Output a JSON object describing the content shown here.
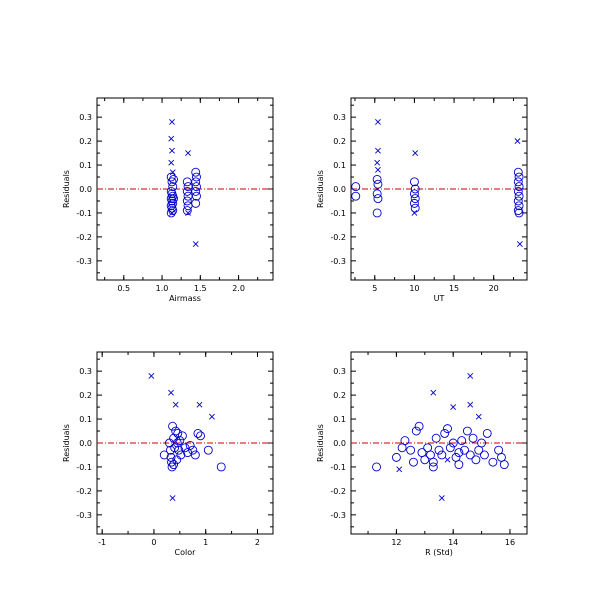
{
  "colors": {
    "marker": "#0000cc",
    "zero_line": "#cc0000",
    "axis": "#000000"
  },
  "chart_data": [
    {
      "type": "scatter",
      "xlabel": "Airmass",
      "ylabel": "Residuals",
      "xlim": [
        0.15,
        2.45
      ],
      "ylim": [
        -0.38,
        0.38
      ],
      "xticks": [
        0.5,
        1.0,
        1.5,
        2.0
      ],
      "xtick_labels": [
        "0.5",
        "1.0",
        "1.5",
        "2.0"
      ],
      "yticks": [
        -0.3,
        -0.2,
        -0.1,
        0.0,
        0.1,
        0.2,
        0.3
      ],
      "ytick_labels": [
        "-0.3",
        "-0.2",
        "-0.1",
        "0.0",
        "0.1",
        "0.2",
        "0.3"
      ],
      "reference_line_y": 0,
      "circles": [
        [
          1.12,
          0.05
        ],
        [
          1.13,
          0.03
        ],
        [
          1.14,
          0.01
        ],
        [
          1.12,
          -0.01
        ],
        [
          1.13,
          -0.02
        ],
        [
          1.14,
          -0.03
        ],
        [
          1.12,
          -0.04
        ],
        [
          1.13,
          -0.05
        ],
        [
          1.14,
          -0.06
        ],
        [
          1.12,
          -0.07
        ],
        [
          1.13,
          -0.08
        ],
        [
          1.14,
          -0.09
        ],
        [
          1.12,
          -0.1
        ],
        [
          1.15,
          0.04
        ],
        [
          1.15,
          -0.04
        ],
        [
          1.33,
          0.03
        ],
        [
          1.34,
          0.01
        ],
        [
          1.33,
          -0.01
        ],
        [
          1.34,
          -0.03
        ],
        [
          1.33,
          -0.05
        ],
        [
          1.34,
          -0.07
        ],
        [
          1.33,
          -0.09
        ],
        [
          1.44,
          0.07
        ],
        [
          1.45,
          0.05
        ],
        [
          1.44,
          0.03
        ],
        [
          1.45,
          0.01
        ],
        [
          1.44,
          -0.01
        ],
        [
          1.45,
          -0.03
        ],
        [
          1.44,
          -0.06
        ]
      ],
      "crosses": [
        [
          1.13,
          0.28
        ],
        [
          1.12,
          0.21
        ],
        [
          1.13,
          0.16
        ],
        [
          1.12,
          0.11
        ],
        [
          1.14,
          0.07
        ],
        [
          1.13,
          -0.1
        ],
        [
          1.34,
          0.15
        ],
        [
          1.34,
          -0.1
        ],
        [
          1.44,
          -0.23
        ]
      ]
    },
    {
      "type": "scatter",
      "xlabel": "UT",
      "ylabel": "Residuals",
      "xlim": [
        2,
        24.2
      ],
      "ylim": [
        -0.38,
        0.38
      ],
      "xticks": [
        5,
        10,
        15,
        20
      ],
      "xtick_labels": [
        "5",
        "10",
        "15",
        "20"
      ],
      "yticks": [
        -0.3,
        -0.2,
        -0.1,
        0.0,
        0.1,
        0.2,
        0.3
      ],
      "ytick_labels": [
        "-0.3",
        "-0.2",
        "-0.1",
        "0.0",
        "0.1",
        "0.2",
        "0.3"
      ],
      "reference_line_y": 0,
      "circles": [
        [
          2.6,
          0.01
        ],
        [
          2.6,
          -0.03
        ],
        [
          5.3,
          0.04
        ],
        [
          5.4,
          0.02
        ],
        [
          5.3,
          -0.02
        ],
        [
          5.4,
          -0.04
        ],
        [
          5.3,
          -0.1
        ],
        [
          10.0,
          0.03
        ],
        [
          10.1,
          0.0
        ],
        [
          10.0,
          -0.02
        ],
        [
          10.1,
          -0.04
        ],
        [
          10.0,
          -0.06
        ],
        [
          10.1,
          -0.08
        ],
        [
          23.1,
          0.07
        ],
        [
          23.2,
          0.05
        ],
        [
          23.1,
          0.03
        ],
        [
          23.2,
          0.01
        ],
        [
          23.1,
          -0.01
        ],
        [
          23.2,
          -0.03
        ],
        [
          23.1,
          -0.05
        ],
        [
          23.2,
          -0.07
        ],
        [
          23.1,
          -0.09
        ],
        [
          23.2,
          -0.1
        ]
      ],
      "crosses": [
        [
          5.4,
          0.28
        ],
        [
          5.4,
          0.16
        ],
        [
          5.3,
          0.11
        ],
        [
          5.4,
          0.08
        ],
        [
          10.1,
          0.15
        ],
        [
          10.0,
          -0.1
        ],
        [
          23.0,
          0.2
        ],
        [
          23.3,
          -0.23
        ]
      ]
    },
    {
      "type": "scatter",
      "xlabel": "Color",
      "ylabel": "Residuals",
      "xlim": [
        -1.1,
        2.3
      ],
      "ylim": [
        -0.38,
        0.38
      ],
      "xticks": [
        -1,
        0,
        1,
        2
      ],
      "xtick_labels": [
        "-1",
        "0",
        "1",
        "2"
      ],
      "yticks": [
        -0.3,
        -0.2,
        -0.1,
        0.0,
        0.1,
        0.2,
        0.3
      ],
      "ytick_labels": [
        "-0.3",
        "-0.2",
        "-0.1",
        "0.0",
        "0.1",
        "0.2",
        "0.3"
      ],
      "reference_line_y": 0,
      "circles": [
        [
          0.2,
          -0.05
        ],
        [
          0.3,
          0.0
        ],
        [
          0.32,
          -0.03
        ],
        [
          0.33,
          -0.06
        ],
        [
          0.34,
          -0.08
        ],
        [
          0.35,
          -0.1
        ],
        [
          0.36,
          0.07
        ],
        [
          0.38,
          0.02
        ],
        [
          0.4,
          -0.02
        ],
        [
          0.42,
          0.05
        ],
        [
          0.44,
          -0.07
        ],
        [
          0.46,
          0.04
        ],
        [
          0.48,
          -0.03
        ],
        [
          0.5,
          0.01
        ],
        [
          0.52,
          -0.05
        ],
        [
          0.55,
          0.03
        ],
        [
          0.6,
          -0.02
        ],
        [
          0.65,
          -0.04
        ],
        [
          0.7,
          -0.01
        ],
        [
          0.75,
          -0.03
        ],
        [
          0.8,
          -0.05
        ],
        [
          0.85,
          0.04
        ],
        [
          0.9,
          0.03
        ],
        [
          1.05,
          -0.03
        ],
        [
          1.3,
          -0.1
        ],
        [
          0.38,
          -0.09
        ],
        [
          0.45,
          0.0
        ]
      ],
      "crosses": [
        [
          -0.05,
          0.28
        ],
        [
          0.33,
          0.21
        ],
        [
          0.42,
          0.16
        ],
        [
          0.88,
          0.16
        ],
        [
          1.12,
          0.11
        ],
        [
          0.36,
          -0.23
        ]
      ]
    },
    {
      "type": "scatter",
      "xlabel": "R (Std)",
      "ylabel": "Residuals",
      "xlim": [
        10.4,
        16.6
      ],
      "ylim": [
        -0.38,
        0.38
      ],
      "xticks": [
        12,
        14,
        16
      ],
      "xtick_labels": [
        "12",
        "14",
        "16"
      ],
      "yticks": [
        -0.3,
        -0.2,
        -0.1,
        0.0,
        0.1,
        0.2,
        0.3
      ],
      "ytick_labels": [
        "-0.3",
        "-0.2",
        "-0.1",
        "0.0",
        "0.1",
        "0.2",
        "0.3"
      ],
      "reference_line_y": 0,
      "circles": [
        [
          11.3,
          -0.1
        ],
        [
          12.0,
          -0.06
        ],
        [
          12.2,
          -0.02
        ],
        [
          12.3,
          0.01
        ],
        [
          12.5,
          -0.03
        ],
        [
          12.7,
          0.05
        ],
        [
          12.8,
          0.07
        ],
        [
          12.9,
          -0.04
        ],
        [
          13.0,
          -0.07
        ],
        [
          13.1,
          -0.02
        ],
        [
          13.2,
          -0.05
        ],
        [
          13.3,
          -0.08
        ],
        [
          13.4,
          0.02
        ],
        [
          13.5,
          -0.03
        ],
        [
          13.6,
          -0.05
        ],
        [
          13.7,
          0.04
        ],
        [
          13.8,
          0.06
        ],
        [
          13.9,
          -0.02
        ],
        [
          14.0,
          0.0
        ],
        [
          14.1,
          -0.06
        ],
        [
          14.2,
          -0.04
        ],
        [
          14.3,
          0.01
        ],
        [
          14.4,
          -0.03
        ],
        [
          14.5,
          0.05
        ],
        [
          14.6,
          -0.05
        ],
        [
          14.7,
          0.02
        ],
        [
          14.8,
          -0.07
        ],
        [
          14.9,
          -0.03
        ],
        [
          15.0,
          0.0
        ],
        [
          15.1,
          -0.05
        ],
        [
          15.2,
          0.04
        ],
        [
          15.4,
          -0.08
        ],
        [
          15.6,
          -0.03
        ],
        [
          15.7,
          -0.06
        ],
        [
          15.8,
          -0.09
        ],
        [
          12.6,
          -0.08
        ],
        [
          13.3,
          -0.1
        ],
        [
          14.2,
          -0.09
        ]
      ],
      "crosses": [
        [
          12.1,
          -0.11
        ],
        [
          13.3,
          0.21
        ],
        [
          13.6,
          -0.23
        ],
        [
          14.0,
          0.15
        ],
        [
          14.6,
          0.28
        ],
        [
          14.6,
          0.16
        ],
        [
          14.9,
          0.11
        ],
        [
          13.8,
          -0.07
        ]
      ]
    }
  ]
}
